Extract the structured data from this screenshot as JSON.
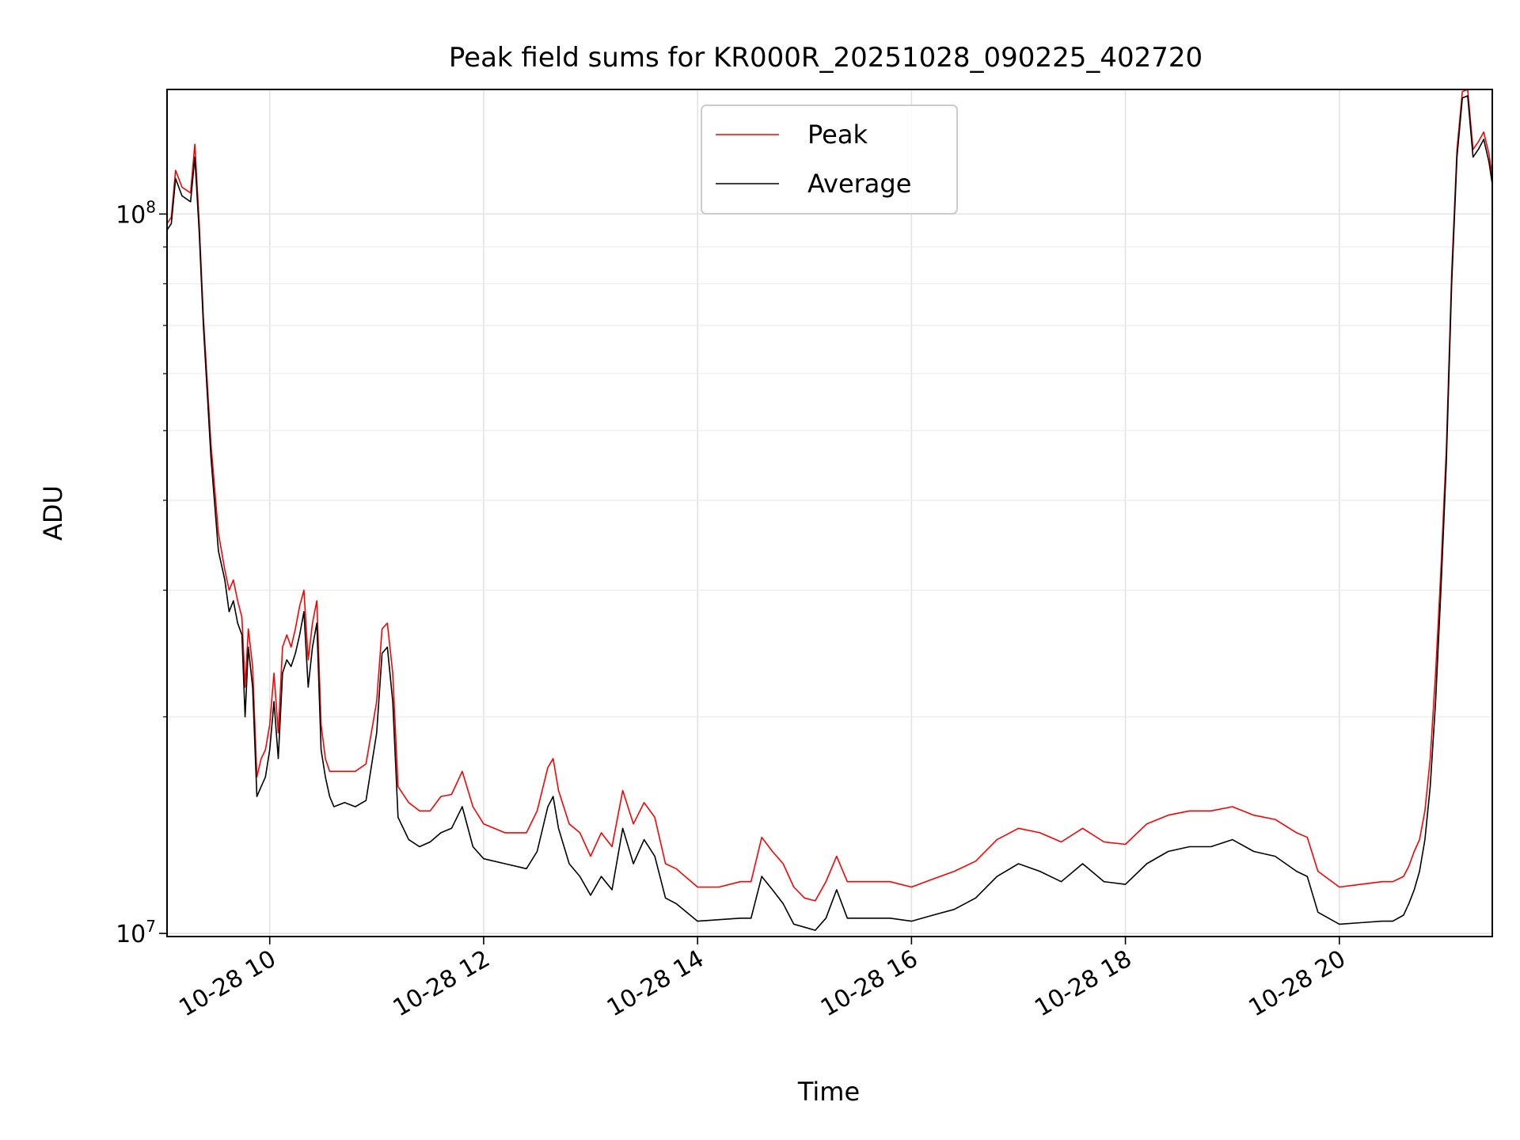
{
  "chart_data": {
    "type": "line",
    "title": "Peak field sums for KR000R_20251028_090225_402720",
    "xlabel": "Time",
    "ylabel": "ADU",
    "yscale": "log",
    "ylim": [
      9900000,
      149000000
    ],
    "xlim": [
      9.04,
      21.43
    ],
    "x_unit": "hours on 2025-10-28",
    "grid": true,
    "legend_location": "top-center",
    "x_ticks": [
      {
        "value": 10,
        "label": "10-28 10"
      },
      {
        "value": 12,
        "label": "10-28 12"
      },
      {
        "value": 14,
        "label": "10-28 14"
      },
      {
        "value": 16,
        "label": "10-28 16"
      },
      {
        "value": 18,
        "label": "10-28 18"
      },
      {
        "value": 20,
        "label": "10-28 20"
      }
    ],
    "y_ticks": [
      {
        "value": 10000000,
        "label_base": "10",
        "label_exp": "7"
      },
      {
        "value": 100000000,
        "label_base": "10",
        "label_exp": "8"
      }
    ],
    "series": [
      {
        "name": "Average",
        "color": "#000000",
        "x": [
          9.04,
          9.08,
          9.12,
          9.18,
          9.26,
          9.3,
          9.34,
          9.38,
          9.45,
          9.52,
          9.58,
          9.62,
          9.66,
          9.7,
          9.74,
          9.77,
          9.8,
          9.84,
          9.88,
          9.92,
          9.96,
          10.0,
          10.04,
          10.08,
          10.12,
          10.16,
          10.2,
          10.24,
          10.28,
          10.32,
          10.36,
          10.4,
          10.44,
          10.48,
          10.52,
          10.56,
          10.6,
          10.7,
          10.8,
          10.9,
          11.0,
          11.05,
          11.1,
          11.15,
          11.2,
          11.3,
          11.4,
          11.5,
          11.6,
          11.7,
          11.8,
          11.9,
          12.0,
          12.2,
          12.4,
          12.5,
          12.6,
          12.65,
          12.7,
          12.8,
          12.9,
          13.0,
          13.1,
          13.2,
          13.3,
          13.4,
          13.5,
          13.6,
          13.7,
          13.8,
          14.0,
          14.2,
          14.4,
          14.5,
          14.6,
          14.7,
          14.8,
          14.9,
          15.0,
          15.1,
          15.2,
          15.3,
          15.4,
          15.6,
          15.8,
          16.0,
          16.2,
          16.4,
          16.6,
          16.8,
          17.0,
          17.2,
          17.4,
          17.6,
          17.8,
          18.0,
          18.2,
          18.4,
          18.6,
          18.8,
          19.0,
          19.2,
          19.4,
          19.6,
          19.7,
          19.8,
          20.0,
          20.2,
          20.4,
          20.5,
          20.6,
          20.65,
          20.7,
          20.75,
          20.8,
          20.85,
          20.9,
          20.95,
          21.0,
          21.05,
          21.1,
          21.15,
          21.2,
          21.25,
          21.3,
          21.35,
          21.4,
          21.43
        ],
        "y": [
          95000000,
          97000000,
          112000000,
          106000000,
          104000000,
          120000000,
          95000000,
          70000000,
          46000000,
          34000000,
          31000000,
          28000000,
          29000000,
          27000000,
          26000000,
          20000000,
          25000000,
          22000000,
          15500000,
          16000000,
          16500000,
          18000000,
          21000000,
          17500000,
          23000000,
          24000000,
          23500000,
          24500000,
          26000000,
          28000000,
          22000000,
          25000000,
          27000000,
          18000000,
          16500000,
          15500000,
          15000000,
          15200000,
          15000000,
          15300000,
          19000000,
          24500000,
          25000000,
          21000000,
          14500000,
          13500000,
          13200000,
          13400000,
          13800000,
          14000000,
          15000000,
          13200000,
          12700000,
          12500000,
          12300000,
          13000000,
          15000000,
          15500000,
          14000000,
          12500000,
          12000000,
          11300000,
          12000000,
          11500000,
          14000000,
          12500000,
          13500000,
          12800000,
          11200000,
          11000000,
          10400000,
          10450000,
          10500000,
          10500000,
          12000000,
          11500000,
          11000000,
          10300000,
          10200000,
          10100000,
          10500000,
          11500000,
          10500000,
          10500000,
          10500000,
          10400000,
          10600000,
          10800000,
          11200000,
          12000000,
          12500000,
          12200000,
          11800000,
          12500000,
          11800000,
          11700000,
          12500000,
          13000000,
          13200000,
          13200000,
          13500000,
          13000000,
          12800000,
          12200000,
          12000000,
          10700000,
          10300000,
          10350000,
          10400000,
          10400000,
          10600000,
          11000000,
          11500000,
          12200000,
          13500000,
          16000000,
          21000000,
          30000000,
          45000000,
          80000000,
          120000000,
          145000000,
          146000000,
          120000000,
          123000000,
          127000000,
          118000000,
          110000000
        ]
      },
      {
        "name": "Peak",
        "color": "#ff0000",
        "x": [
          9.04,
          9.08,
          9.12,
          9.18,
          9.26,
          9.3,
          9.34,
          9.38,
          9.45,
          9.52,
          9.58,
          9.62,
          9.66,
          9.7,
          9.74,
          9.77,
          9.8,
          9.84,
          9.88,
          9.92,
          9.96,
          10.0,
          10.04,
          10.08,
          10.12,
          10.16,
          10.2,
          10.24,
          10.28,
          10.32,
          10.36,
          10.4,
          10.44,
          10.48,
          10.52,
          10.56,
          10.6,
          10.7,
          10.8,
          10.9,
          11.0,
          11.05,
          11.1,
          11.15,
          11.2,
          11.3,
          11.4,
          11.5,
          11.6,
          11.7,
          11.8,
          11.9,
          12.0,
          12.2,
          12.4,
          12.5,
          12.6,
          12.65,
          12.7,
          12.8,
          12.9,
          13.0,
          13.1,
          13.2,
          13.3,
          13.4,
          13.5,
          13.6,
          13.7,
          13.8,
          14.0,
          14.2,
          14.4,
          14.5,
          14.6,
          14.7,
          14.8,
          14.9,
          15.0,
          15.1,
          15.2,
          15.3,
          15.4,
          15.6,
          15.8,
          16.0,
          16.2,
          16.4,
          16.6,
          16.8,
          17.0,
          17.2,
          17.4,
          17.6,
          17.8,
          18.0,
          18.2,
          18.4,
          18.6,
          18.8,
          19.0,
          19.2,
          19.4,
          19.6,
          19.7,
          19.8,
          20.0,
          20.2,
          20.4,
          20.5,
          20.6,
          20.65,
          20.7,
          20.75,
          20.8,
          20.85,
          20.9,
          20.95,
          21.0,
          21.05,
          21.1,
          21.15,
          21.2,
          21.25,
          21.3,
          21.35,
          21.4,
          21.43
        ],
        "y": [
          97000000,
          99000000,
          115000000,
          109000000,
          107000000,
          125000000,
          98000000,
          72000000,
          48000000,
          36000000,
          32000000,
          30000000,
          31000000,
          29000000,
          27500000,
          22000000,
          26500000,
          23500000,
          16500000,
          17500000,
          18000000,
          19500000,
          23000000,
          19000000,
          25000000,
          26000000,
          25000000,
          26500000,
          28500000,
          30000000,
          24000000,
          27000000,
          29000000,
          19500000,
          17500000,
          16800000,
          16800000,
          16800000,
          16800000,
          17200000,
          21000000,
          26500000,
          27000000,
          23000000,
          16000000,
          15200000,
          14800000,
          14800000,
          15500000,
          15600000,
          16800000,
          15000000,
          14200000,
          13800000,
          13800000,
          14800000,
          17000000,
          17500000,
          15800000,
          14200000,
          13800000,
          12800000,
          13800000,
          13200000,
          15800000,
          14200000,
          15200000,
          14500000,
          12500000,
          12300000,
          11600000,
          11600000,
          11800000,
          11800000,
          13600000,
          13000000,
          12500000,
          11600000,
          11200000,
          11100000,
          11800000,
          12800000,
          11800000,
          11800000,
          11800000,
          11600000,
          11900000,
          12200000,
          12600000,
          13500000,
          14000000,
          13800000,
          13400000,
          14000000,
          13400000,
          13300000,
          14200000,
          14600000,
          14800000,
          14800000,
          15000000,
          14600000,
          14400000,
          13800000,
          13600000,
          12200000,
          11600000,
          11700000,
          11800000,
          11800000,
          12000000,
          12400000,
          13000000,
          13500000,
          14800000,
          17500000,
          23000000,
          32000000,
          47000000,
          83000000,
          123000000,
          148000000,
          149000000,
          123000000,
          126000000,
          130000000,
          121000000,
          113000000
        ]
      }
    ]
  }
}
